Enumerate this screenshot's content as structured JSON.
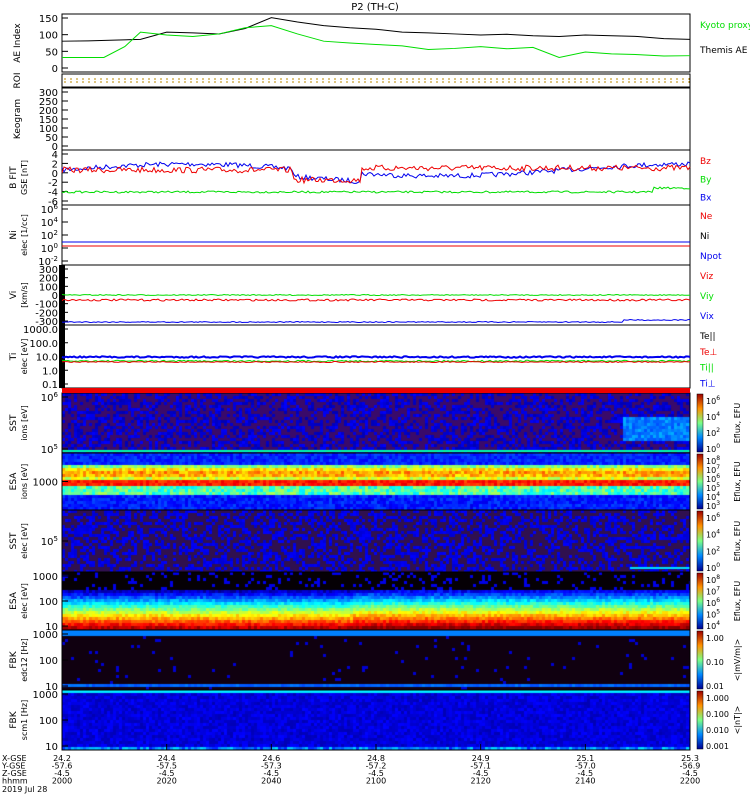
{
  "title": "P2 (TH-C)",
  "chart_data": {
    "type": "line",
    "time_range": [
      "20:00",
      "22:00"
    ],
    "panels": [
      {
        "id": "ae",
        "ylabel": "AE Index",
        "ticks": [
          "150",
          "100",
          "50",
          "0"
        ],
        "ylim": [
          -10,
          150
        ],
        "legend": [
          {
            "label": "Kyoto proxy AE",
            "color": "#00dd00"
          },
          {
            "label": "Themis AE",
            "color": "#000000"
          }
        ],
        "series": [
          {
            "name": "Themis AE",
            "color": "#000000",
            "x": [
              0,
              5,
              10,
              15,
              20,
              25,
              30,
              35,
              40,
              45,
              50,
              55,
              60,
              65,
              70,
              75,
              80,
              85,
              90,
              95,
              100,
              105,
              110,
              115,
              120
            ],
            "y": [
              75,
              76,
              78,
              80,
              100,
              98,
              95,
              110,
              140,
              128,
              118,
              112,
              108,
              100,
              98,
              95,
              92,
              94,
              90,
              88,
              92,
              90,
              88,
              82,
              80
            ]
          },
          {
            "name": "Kyoto proxy AE",
            "color": "#00dd00",
            "x": [
              0,
              5,
              8,
              12,
              15,
              20,
              25,
              30,
              35,
              40,
              45,
              50,
              55,
              60,
              65,
              70,
              75,
              80,
              85,
              90,
              95,
              100,
              105,
              110,
              115,
              120
            ],
            "y": [
              30,
              30,
              30,
              60,
              100,
              92,
              88,
              95,
              112,
              118,
              95,
              75,
              70,
              66,
              62,
              52,
              55,
              60,
              54,
              58,
              30,
              45,
              40,
              38,
              34,
              35
            ]
          }
        ]
      },
      {
        "id": "roi",
        "ylabel": "ROI",
        "ticks": []
      },
      {
        "id": "keogram",
        "ylabel": "Keogram",
        "ticks": [
          "300",
          "250",
          "200",
          "150",
          "100",
          "50",
          "0"
        ]
      },
      {
        "id": "bfit",
        "ylabel": "B FIT",
        "units": "GSE [nT]",
        "ticks": [
          "4",
          "2",
          "0",
          "-2",
          "-4",
          "-6"
        ],
        "legend": [
          {
            "label": "Bz",
            "color": "#ee0000"
          },
          {
            "label": "By",
            "color": "#00dd00"
          },
          {
            "label": "Bx",
            "color": "#0000ee"
          }
        ]
      },
      {
        "id": "ni",
        "ylabel": "Ni",
        "units": "elec [1/cc]",
        "ticks": [
          "10^6",
          "10^4",
          "10^2",
          "10^0",
          "10^-2"
        ],
        "legend": [
          {
            "label": "Ne",
            "color": "#ee0000"
          },
          {
            "label": "Ni",
            "color": "#000000"
          },
          {
            "label": "Npot",
            "color": "#0000ee"
          }
        ]
      },
      {
        "id": "vi",
        "ylabel": "Vi",
        "units": "[km/s]",
        "ticks": [
          "300",
          "200",
          "100",
          "0",
          "-100",
          "-200",
          "-300"
        ],
        "legend": [
          {
            "label": "Viz",
            "color": "#ee0000"
          },
          {
            "label": "Viy",
            "color": "#00dd00"
          },
          {
            "label": "Vix",
            "color": "#0000ee"
          }
        ]
      },
      {
        "id": "ti",
        "ylabel": "Ti",
        "units": "elec [eV]",
        "ticks": [
          "1000.0",
          "100.0",
          "10.0",
          "1.0",
          "0.1"
        ],
        "legend": [
          {
            "label": "Te||",
            "color": "#000000"
          },
          {
            "label": "Te⊥",
            "color": "#ee0000"
          },
          {
            "label": "Ti||",
            "color": "#00dd00"
          },
          {
            "label": "Ti⊥",
            "color": "#0000ee"
          }
        ]
      },
      {
        "id": "sst_i",
        "ylabel": "SST",
        "units": "ions [eV]",
        "ticks": [
          "10^6",
          "10^5"
        ],
        "colorbar": {
          "label": "Eflux, EFU",
          "ticks": [
            "10^6",
            "10^4",
            "10^2",
            "10^0"
          ]
        }
      },
      {
        "id": "esa_i",
        "ylabel": "ESA",
        "units": "ions [eV]",
        "ticks": [
          "1000"
        ],
        "colorbar": {
          "label": "Eflux, EFU",
          "ticks": [
            "10^8",
            "10^7",
            "10^6",
            "10^5",
            "10^4",
            "10^3"
          ]
        }
      },
      {
        "id": "sst_e",
        "ylabel": "SST",
        "units": "elec [eV]",
        "ticks": [
          "10^5"
        ],
        "colorbar": {
          "label": "Eflux, EFU",
          "ticks": [
            "10^6",
            "10^4",
            "10^2",
            "10^0"
          ]
        }
      },
      {
        "id": "esa_e",
        "ylabel": "ESA",
        "units": "elec [eV]",
        "ticks": [
          "1000",
          "100",
          "10"
        ],
        "colorbar": {
          "label": "Eflux, EFU",
          "ticks": [
            "10^8",
            "10^7",
            "10^6",
            "10^5",
            "10^4"
          ]
        }
      },
      {
        "id": "fbk_e",
        "ylabel": "FBK",
        "units": "edc12 [Hz]",
        "ticks": [
          "1000",
          "100",
          "10"
        ],
        "colorbar": {
          "label": "<|mV/m|>",
          "ticks": [
            "1.00",
            "0.10",
            "0.01"
          ]
        }
      },
      {
        "id": "fbk_b",
        "ylabel": "FBK",
        "units": "scm1 [Hz]",
        "ticks": [
          "1000",
          "100",
          "10"
        ],
        "colorbar": {
          "label": "<|nT|>",
          "ticks": [
            "1.000",
            "0.100",
            "0.010",
            "0.001"
          ]
        }
      }
    ],
    "xaxis": {
      "row_labels": [
        "X-GSE",
        "Y-GSE",
        "Z-GSE",
        "hhmm"
      ],
      "columns": [
        [
          "24.2",
          "-57.6",
          "-4.5",
          "2000"
        ],
        [
          "24.4",
          "-57.5",
          "-4.5",
          "2020"
        ],
        [
          "24.6",
          "-57.3",
          "-4.5",
          "2040"
        ],
        [
          "24.8",
          "-57.2",
          "-4.5",
          "2100"
        ],
        [
          "24.9",
          "-57.1",
          "-4.5",
          "2120"
        ],
        [
          "25.1",
          "-57.0",
          "-4.5",
          "2140"
        ],
        [
          "25.3",
          "-56.9",
          "-4.5",
          "2200"
        ]
      ],
      "date": "2019 Jul 28"
    }
  }
}
